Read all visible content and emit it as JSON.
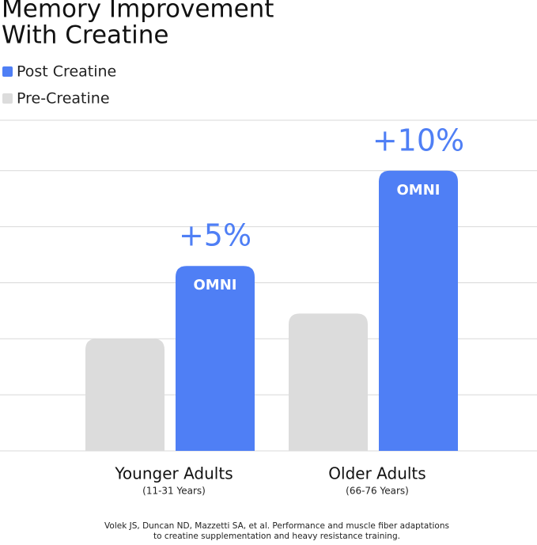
{
  "chart_data": {
    "type": "bar",
    "title_lines": [
      "Memory Improvement",
      "With Creatine"
    ],
    "categories": [
      "Younger Adults",
      "Older Adults"
    ],
    "category_subtitles": [
      "(11-31 Years)",
      "(66-76 Years)"
    ],
    "series": [
      {
        "name": "Pre-Creatine",
        "color": "#dcdcdc",
        "values": [
          2,
          2.45
        ]
      },
      {
        "name": "Post Creatine",
        "color": "#4f7ff5",
        "values": [
          3.3,
          5
        ],
        "annotations": [
          "+5%",
          "+10%"
        ],
        "bar_labels": [
          "OMNI",
          "OMNI"
        ]
      }
    ],
    "legend_order": [
      1,
      0
    ],
    "ylim": [
      0,
      5.9
    ],
    "yticks": [
      0,
      1,
      2,
      3,
      4,
      5
    ],
    "grid": true,
    "footnote_lines": [
      "Volek JS, Duncan ND, Mazzetti SA, et al. Performance and muscle fiber adaptations",
      "to creatine supplementation and heavy resistance training."
    ]
  }
}
